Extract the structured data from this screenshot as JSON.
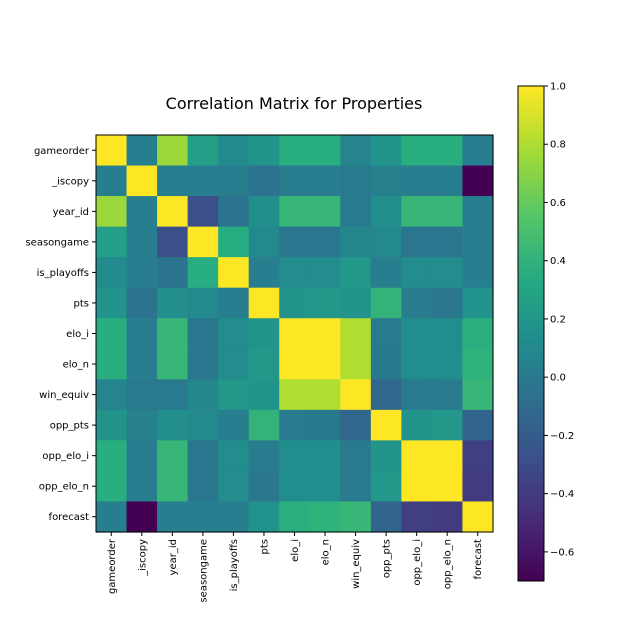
{
  "chart_data": {
    "type": "heatmap",
    "title": "Correlation Matrix for Properties",
    "xlabel": "",
    "ylabel": "",
    "labels": [
      "gameorder",
      "_iscopy",
      "year_id",
      "seasongame",
      "is_playoffs",
      "pts",
      "elo_i",
      "elo_n",
      "win_equiv",
      "opp_pts",
      "opp_elo_i",
      "opp_elo_n",
      "forecast"
    ],
    "matrix": [
      [
        1.0,
        0.03,
        0.75,
        0.26,
        0.11,
        0.18,
        0.37,
        0.37,
        0.07,
        0.18,
        0.37,
        0.37,
        0.03
      ],
      [
        0.03,
        1.0,
        0.03,
        0.03,
        0.02,
        -0.05,
        0.02,
        0.02,
        0.0,
        0.05,
        0.02,
        0.02,
        -0.7
      ],
      [
        0.75,
        0.03,
        1.0,
        -0.28,
        -0.05,
        0.14,
        0.43,
        0.43,
        0.0,
        0.14,
        0.43,
        0.43,
        0.03
      ],
      [
        0.26,
        0.03,
        -0.28,
        1.0,
        0.36,
        0.1,
        -0.03,
        -0.03,
        0.09,
        0.1,
        -0.03,
        -0.03,
        0.03
      ],
      [
        0.11,
        0.02,
        -0.05,
        0.36,
        1.0,
        0.03,
        0.12,
        0.12,
        0.2,
        0.03,
        0.12,
        0.12,
        0.03
      ],
      [
        0.18,
        -0.05,
        0.14,
        0.1,
        0.03,
        1.0,
        0.18,
        0.2,
        0.18,
        0.41,
        0.01,
        -0.02,
        0.17
      ],
      [
        0.37,
        0.02,
        0.43,
        -0.03,
        0.12,
        0.18,
        1.0,
        1.0,
        0.8,
        0.0,
        0.13,
        0.13,
        0.38
      ],
      [
        0.37,
        0.02,
        0.43,
        -0.03,
        0.12,
        0.2,
        1.0,
        1.0,
        0.8,
        -0.01,
        0.13,
        0.13,
        0.4
      ],
      [
        0.07,
        0.0,
        0.0,
        0.09,
        0.2,
        0.18,
        0.8,
        0.8,
        1.0,
        -0.12,
        0.0,
        0.0,
        0.43
      ],
      [
        0.18,
        0.05,
        0.14,
        0.1,
        0.03,
        0.41,
        0.0,
        -0.01,
        -0.12,
        1.0,
        0.18,
        0.2,
        -0.14
      ],
      [
        0.37,
        0.02,
        0.43,
        -0.03,
        0.12,
        0.01,
        0.13,
        0.13,
        0.0,
        0.18,
        1.0,
        1.0,
        -0.38
      ],
      [
        0.37,
        0.02,
        0.43,
        -0.03,
        0.12,
        -0.02,
        0.13,
        0.13,
        0.0,
        0.2,
        1.0,
        1.0,
        -0.4
      ],
      [
        0.03,
        -0.7,
        0.03,
        0.03,
        0.03,
        0.17,
        0.38,
        0.4,
        0.43,
        -0.14,
        -0.38,
        -0.4,
        1.0
      ]
    ],
    "colormap": "viridis",
    "vmin": -0.7,
    "vmax": 1.0,
    "colorbar_ticks": [
      "1.0",
      "0.8",
      "0.6",
      "0.4",
      "0.2",
      "0.0",
      "−0.2",
      "−0.4",
      "−0.6"
    ],
    "colorbar_tick_values": [
      1.0,
      0.8,
      0.6,
      0.4,
      0.2,
      0.0,
      -0.2,
      -0.4,
      -0.6
    ],
    "grid": false
  }
}
